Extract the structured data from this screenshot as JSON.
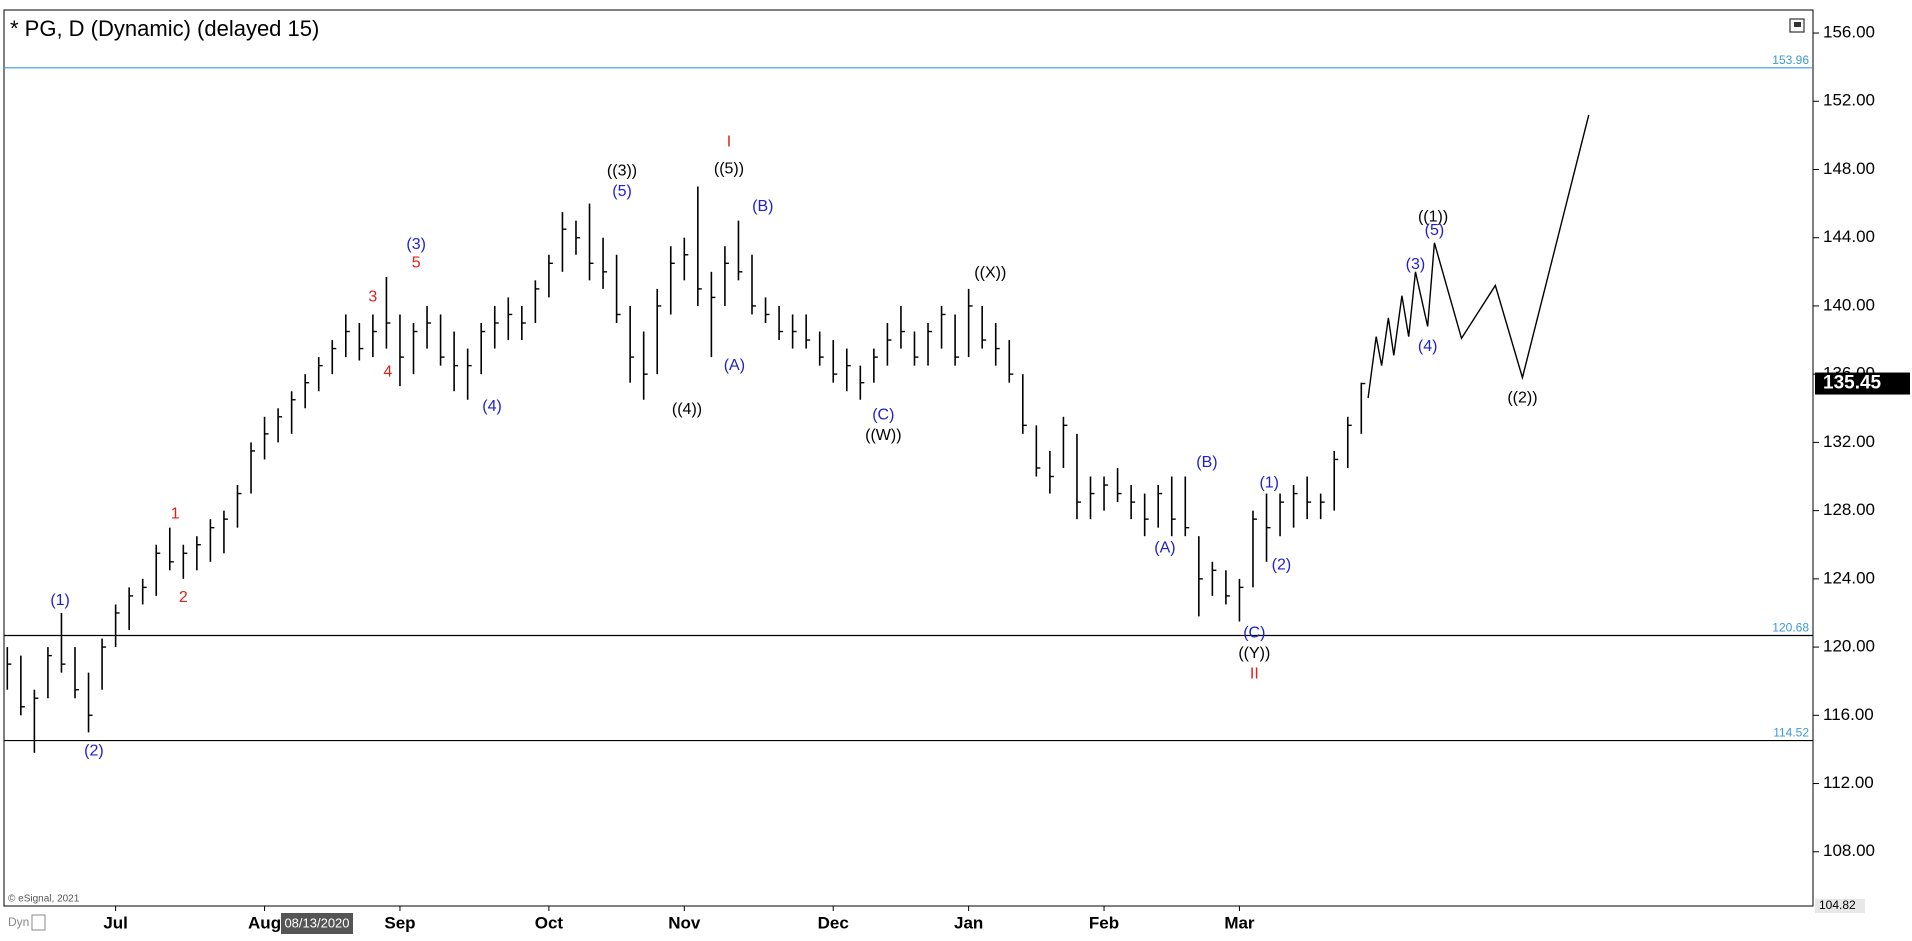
{
  "chart_data": {
    "type": "ohlc",
    "title": "* PG, D (Dynamic) (delayed 15)",
    "categories": [
      null,
      null,
      null,
      null,
      null,
      null,
      null,
      null,
      "Jul",
      null,
      null,
      null,
      null,
      null,
      null,
      null,
      null,
      null,
      null,
      "Aug",
      null,
      null,
      null,
      null,
      null,
      null,
      null,
      null,
      null,
      "Sep",
      null,
      null,
      null,
      null,
      null,
      null,
      null,
      null,
      null,
      null,
      "Oct",
      null,
      null,
      null,
      null,
      null,
      null,
      null,
      null,
      null,
      "Nov",
      null,
      null,
      null,
      null,
      null,
      null,
      null,
      null,
      null,
      null,
      "Dec",
      null,
      null,
      null,
      null,
      null,
      null,
      null,
      null,
      null,
      "Jan",
      null,
      null,
      null,
      null,
      null,
      null,
      null,
      null,
      null,
      "Feb",
      null,
      null,
      null,
      null,
      null,
      null,
      null,
      null,
      null,
      "Mar",
      null,
      null,
      null,
      null,
      null,
      null,
      null,
      null,
      null
    ],
    "high": [
      120,
      119.5,
      117.5,
      120,
      122,
      120,
      118.5,
      120.5,
      122.5,
      123.5,
      124,
      126,
      127,
      126,
      126.5,
      127.5,
      128,
      129.5,
      132,
      133.5,
      134,
      135,
      136,
      137,
      138,
      139.5,
      139,
      139.5,
      141.7,
      139.5,
      139,
      140,
      139.5,
      138.5,
      137.5,
      139,
      140,
      140.5,
      140,
      141.5,
      143,
      145.5,
      145,
      146,
      144,
      143,
      140,
      138.5,
      141,
      143.5,
      144,
      147,
      142,
      143.5,
      145,
      143,
      140.5,
      140,
      139.5,
      139.5,
      138.5,
      138,
      137.5,
      136.5,
      137.5,
      139,
      140,
      138.5,
      139,
      140,
      139.5,
      141,
      140,
      139,
      138,
      136,
      133,
      131.5,
      133.5,
      132.5,
      130,
      130,
      130.5,
      129.5,
      129,
      129.5,
      130,
      130,
      126.5,
      125,
      124.5,
      124,
      128,
      129,
      129,
      129.5,
      130,
      129,
      131.5,
      133.5,
      135.5
    ],
    "low": [
      117.5,
      116,
      113.8,
      117,
      118.5,
      117,
      115,
      117.5,
      120,
      121,
      122.5,
      123,
      124.5,
      124,
      124.5,
      125,
      125.5,
      127,
      129,
      131,
      132,
      132.5,
      134,
      135,
      136,
      137,
      136.8,
      137,
      137.5,
      135.3,
      136,
      137.5,
      136.5,
      135,
      134.5,
      136,
      137.5,
      138,
      138,
      139,
      140.5,
      142,
      143,
      141.5,
      141,
      139,
      135.5,
      134.5,
      136,
      139.5,
      141.5,
      140,
      137,
      140,
      141.5,
      139.5,
      139,
      138,
      137.5,
      137.5,
      136.5,
      135.5,
      135,
      134.5,
      135.5,
      136.5,
      137.5,
      136.5,
      136.5,
      137.5,
      136.5,
      137,
      137.5,
      136.5,
      135.5,
      132.5,
      130,
      129,
      130.5,
      127.5,
      127.5,
      128,
      128.5,
      127.5,
      126.5,
      127,
      126.5,
      126.5,
      121.8,
      123,
      122.5,
      121.5,
      123.5,
      125,
      126.5,
      127,
      127.5,
      127.5,
      128,
      130.5,
      132.5
    ],
    "close": [
      119,
      116.5,
      117,
      119.5,
      119,
      117.5,
      116,
      120,
      122,
      123,
      123.5,
      125.5,
      125,
      125.5,
      126,
      127,
      127.5,
      129,
      131.5,
      132.5,
      133.5,
      134.5,
      135.5,
      136.5,
      137.5,
      138.5,
      137.5,
      138.5,
      139,
      137,
      138.5,
      139,
      137,
      136.5,
      136.5,
      138.5,
      139,
      139.5,
      139,
      141,
      142.5,
      144.5,
      144,
      142.5,
      142,
      139.5,
      137,
      136,
      140,
      142.5,
      143,
      141,
      140.5,
      142.5,
      142,
      140,
      139.5,
      138.5,
      138.5,
      138,
      137,
      136,
      136.5,
      135.5,
      137,
      138,
      138.5,
      137,
      138.5,
      139.5,
      137,
      140,
      138,
      137.5,
      136,
      133,
      130.5,
      130,
      133,
      128.5,
      129,
      129.5,
      129,
      128.5,
      127.5,
      129,
      127.5,
      127,
      124,
      124.5,
      123,
      123.5,
      127.5,
      127,
      128.5,
      129,
      128.5,
      128.5,
      131,
      133,
      135.45
    ],
    "color": "#000000",
    "ylim": [
      104.82,
      157.35
    ],
    "yticks": [
      {
        "value": 108,
        "label": "108.00"
      },
      {
        "value": 112,
        "label": "112.00"
      },
      {
        "value": 116,
        "label": "116.00"
      },
      {
        "value": 120,
        "label": "120.00"
      },
      {
        "value": 124,
        "label": "124.00"
      },
      {
        "value": 128,
        "label": "128.00"
      },
      {
        "value": 132,
        "label": "132.00"
      },
      {
        "value": 136,
        "label": "136.00"
      },
      {
        "value": 140,
        "label": "140.00"
      },
      {
        "value": 144,
        "label": "144.00"
      },
      {
        "value": 148,
        "label": "148.00"
      },
      {
        "value": 152,
        "label": "152.00"
      },
      {
        "value": 156,
        "label": "156.00"
      }
    ],
    "last_price": 135.45,
    "hlines": [
      {
        "value": 153.96,
        "color": "#3a9ad9"
      },
      {
        "value": 120.68,
        "color": "#000000"
      },
      {
        "value": 114.52,
        "color": "#000000"
      }
    ],
    "annotations": [
      {
        "text": "(1)",
        "x": 3.9,
        "y": 122.7,
        "color": "#1f1fd0"
      },
      {
        "text": "(2)",
        "x": 6.4,
        "y": 113.9,
        "color": "#1f1fd0"
      },
      {
        "text": "1",
        "x": 12.4,
        "y": 127.8,
        "color": "#e0201b"
      },
      {
        "text": "2",
        "x": 13,
        "y": 122.9,
        "color": "#e0201b"
      },
      {
        "text": "3",
        "x": 27,
        "y": 140.5,
        "color": "#e0201b"
      },
      {
        "text": "4",
        "x": 28.1,
        "y": 136.1,
        "color": "#e0201b"
      },
      {
        "text": "(3)",
        "x": 30.2,
        "y": 143.6,
        "color": "#1f1fd0"
      },
      {
        "text": "5",
        "x": 30.2,
        "y": 142.5,
        "color": "#e0201b"
      },
      {
        "text": "(4)",
        "x": 35.8,
        "y": 134.1,
        "color": "#1f1fd0"
      },
      {
        "text": "((3))",
        "x": 45.4,
        "y": 147.9,
        "color": "#000000"
      },
      {
        "text": "(5)",
        "x": 45.4,
        "y": 146.7,
        "color": "#1f1fd0"
      },
      {
        "text": "((4))",
        "x": 50.2,
        "y": 133.9,
        "color": "#000000"
      },
      {
        "text": "I",
        "x": 53.3,
        "y": 149.6,
        "color": "#e0201b"
      },
      {
        "text": "((5))",
        "x": 53.3,
        "y": 148,
        "color": "#000000"
      },
      {
        "text": "(A)",
        "x": 53.7,
        "y": 136.5,
        "color": "#1f1fd0"
      },
      {
        "text": "(B)",
        "x": 55.8,
        "y": 145.8,
        "color": "#1f1fd0"
      },
      {
        "text": "(C)",
        "x": 64.7,
        "y": 133.6,
        "color": "#1f1fd0"
      },
      {
        "text": "((W))",
        "x": 64.7,
        "y": 132.4,
        "color": "#000000"
      },
      {
        "text": "((X))",
        "x": 72.6,
        "y": 141.9,
        "color": "#000000"
      },
      {
        "text": "(A)",
        "x": 85.5,
        "y": 125.8,
        "color": "#1f1fd0"
      },
      {
        "text": "(B)",
        "x": 88.6,
        "y": 130.8,
        "color": "#1f1fd0"
      },
      {
        "text": "(C)",
        "x": 92.1,
        "y": 120.8,
        "color": "#1f1fd0"
      },
      {
        "text": "((Y))",
        "x": 92.1,
        "y": 119.6,
        "color": "#000000"
      },
      {
        "text": "II",
        "x": 92.1,
        "y": 118.4,
        "color": "#e0201b"
      },
      {
        "text": "(1)",
        "x": 93.2,
        "y": 129.6,
        "color": "#1f1fd0"
      },
      {
        "text": "(2)",
        "x": 94.1,
        "y": 124.8,
        "color": "#1f1fd0"
      },
      {
        "text": "(3)",
        "x": 104,
        "y": 142.4,
        "color": "#1f1fd0"
      },
      {
        "text": "((1))",
        "x": 105.3,
        "y": 145.2,
        "color": "#000000"
      },
      {
        "text": "(5)",
        "x": 105.4,
        "y": 144.4,
        "color": "#1f1fd0"
      },
      {
        "text": "(4)",
        "x": 104.9,
        "y": 137.6,
        "color": "#1f1fd0"
      },
      {
        "text": "((2))",
        "x": 111.9,
        "y": 134.6,
        "color": "#000000"
      }
    ],
    "projection": {
      "x": [
        100.5,
        101.1,
        101.5,
        102,
        102.4,
        103,
        103.5,
        104,
        104.9,
        105.4,
        107.4,
        109.9,
        111.9,
        116.8
      ],
      "y": [
        134.6,
        138.2,
        136.5,
        139.3,
        137.1,
        140.6,
        138.2,
        142,
        138.8,
        143.7,
        138.1,
        141.2,
        135.8,
        151.2
      ]
    },
    "cursor_date": "08/13/2020",
    "copyright": "© eSignal, 2021",
    "mode": "Dyn"
  }
}
